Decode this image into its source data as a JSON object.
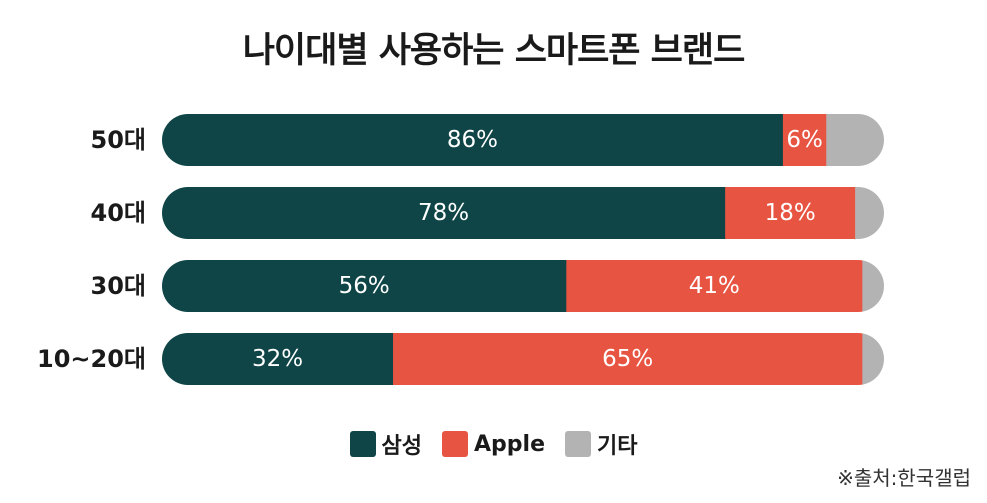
{
  "title": "나이대별 사용하는 스마트폰 브랜드",
  "source": "※출처:한국갤럽",
  "colors": {
    "samsung": "#0f4547",
    "apple": "#e85442",
    "other": "#b3b3b3"
  },
  "legend": [
    {
      "name": "삼성",
      "color_key": "samsung"
    },
    {
      "name": "Apple",
      "color_key": "apple"
    },
    {
      "name": "기타",
      "color_key": "other"
    }
  ],
  "chart_data": {
    "type": "bar",
    "orientation": "horizontal",
    "stacked": true,
    "title": "나이대별 사용하는 스마트폰 브랜드",
    "categories": [
      "50대",
      "40대",
      "30대",
      "10~20대"
    ],
    "series": [
      {
        "name": "삼성",
        "values": [
          86,
          78,
          56,
          32
        ],
        "labels": [
          "86%",
          "78%",
          "56%",
          "32%"
        ]
      },
      {
        "name": "Apple",
        "values": [
          6,
          18,
          41,
          65
        ],
        "labels": [
          "6%",
          "18%",
          "41%",
          "65%"
        ]
      },
      {
        "name": "기타",
        "values": [
          8,
          4,
          3,
          3
        ],
        "labels": [
          "",
          "",
          "",
          ""
        ]
      }
    ],
    "xlim": [
      0,
      100
    ],
    "legend_position": "bottom-center",
    "grid": false
  }
}
